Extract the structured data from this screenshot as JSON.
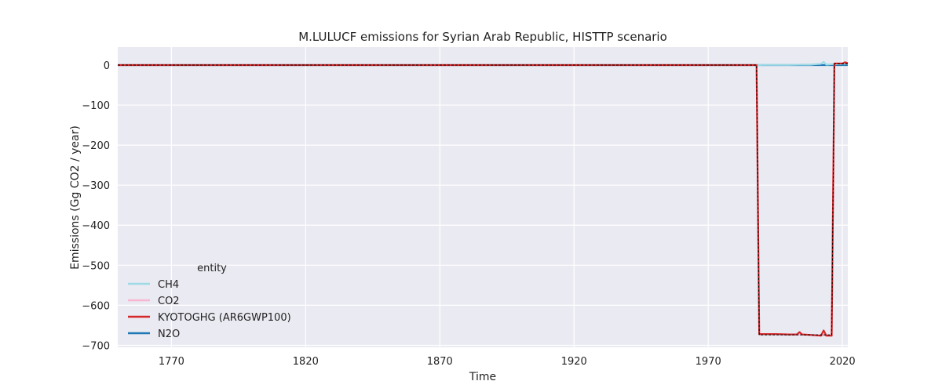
{
  "chart_data": {
    "type": "line",
    "title": "M.LULUCF emissions for Syrian Arab Republic, HISTTP scenario",
    "xlabel": "Time",
    "ylabel": "Emissions (Gg CO2 / year)",
    "xlim": [
      1750,
      2022
    ],
    "ylim": [
      -705,
      45
    ],
    "xticks": [
      1770,
      1820,
      1870,
      1920,
      1970,
      2020
    ],
    "yticks": [
      0,
      -100,
      -200,
      -300,
      -400,
      -500,
      -600,
      -700
    ],
    "grid": true,
    "legend_title": "entity",
    "legend_position": "lower-left",
    "series": [
      {
        "name": "CH4",
        "color": "#9edae5",
        "style": "solid",
        "x": [
          1750,
          1989,
          1990,
          2000,
          2005,
          2008,
          2010,
          2012,
          2013,
          2014,
          2016,
          2017,
          2020,
          2022
        ],
        "y": [
          0,
          0,
          0.5,
          0.5,
          1,
          1,
          2,
          3,
          8,
          1,
          2,
          2,
          3,
          3
        ]
      },
      {
        "name": "CO2",
        "color": "#f7b6d2",
        "style": "solid",
        "x": [
          1750,
          1988,
          1989,
          1990,
          1995,
          2000,
          2005,
          2008,
          2010,
          2012,
          2013,
          2014,
          2016,
          2017,
          2020,
          2021,
          2022
        ],
        "y": [
          0,
          0,
          -672,
          -672,
          -672,
          -673,
          -673,
          -674,
          -675,
          -676,
          -674,
          -676,
          -676,
          3,
          3,
          6,
          4
        ]
      },
      {
        "name": "KYOTOGHG (AR6GWP100)",
        "color": "#d62728",
        "style": "solid",
        "x": [
          1750,
          1988,
          1989,
          1990,
          1995,
          2000,
          2003,
          2004,
          2005,
          2008,
          2010,
          2012,
          2013,
          2014,
          2016,
          2017,
          2020,
          2021,
          2022
        ],
        "y": [
          0,
          0,
          -672,
          -672,
          -672,
          -673,
          -673,
          -667,
          -673,
          -674,
          -675,
          -676,
          -663,
          -676,
          -676,
          4,
          4,
          7,
          5
        ]
      },
      {
        "name": "N2O",
        "color": "#1f77b4",
        "style": "solid",
        "x": [
          1750,
          2022
        ],
        "y": [
          0,
          0
        ]
      },
      {
        "name": "",
        "color": "#000000",
        "style": "dashed",
        "x": [
          1750,
          1988,
          1989,
          2016,
          2017,
          2022
        ],
        "y": [
          0,
          0,
          -674,
          -674,
          3,
          3
        ]
      }
    ]
  }
}
